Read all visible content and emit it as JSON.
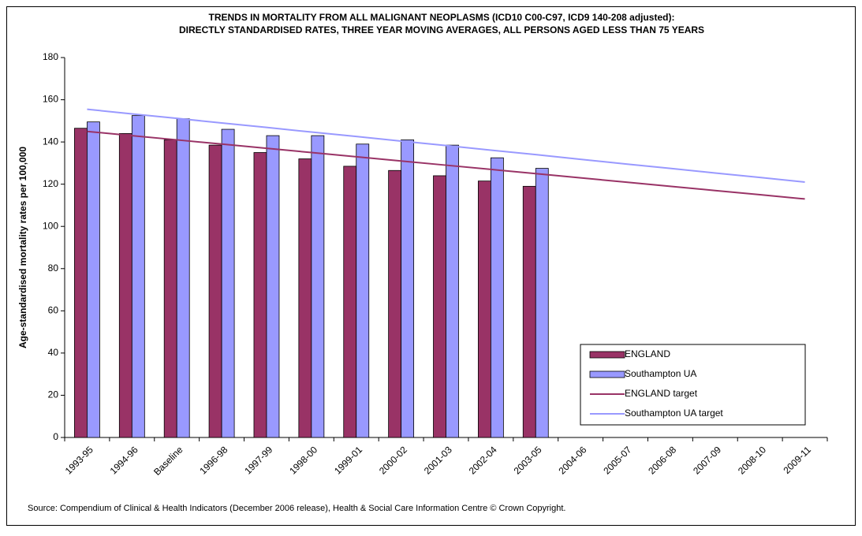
{
  "chart_data": {
    "type": "bar",
    "title": [
      "TRENDS IN MORTALITY FROM ALL MALIGNANT NEOPLASMS (ICD10 C00-C97, ICD9 140-208 adjusted):",
      "DIRECTLY STANDARDISED RATES, THREE YEAR MOVING AVERAGES, ALL PERSONS AGED  LESS THAN 75 YEARS"
    ],
    "y_label": "Age-standardised mortality rates per 100,000",
    "source": "Source: Compendium of Clinical & Health Indicators (December 2006 release), Health & Social Care Information Centre © Crown Copyright.",
    "categories": [
      "1993-95",
      "1994-96",
      "Baseline",
      "1996-98",
      "1997-99",
      "1998-00",
      "1999-01",
      "2000-02",
      "2001-03",
      "2002-04",
      "2003-05",
      "2004-06",
      "2005-07",
      "2006-08",
      "2007-09",
      "2008-10",
      "2009-11"
    ],
    "series": [
      {
        "name": "ENGLAND",
        "type": "bar",
        "color": "#993366",
        "values": [
          146.5,
          144,
          141,
          138.5,
          135,
          132,
          128.5,
          126.5,
          124,
          121.5,
          119,
          null,
          null,
          null,
          null,
          null,
          null
        ]
      },
      {
        "name": "Southampton UA",
        "type": "bar",
        "color": "#9999ff",
        "values": [
          149.5,
          152.5,
          151,
          146,
          143,
          143,
          139,
          141,
          138.5,
          132.5,
          127.5,
          null,
          null,
          null,
          null,
          null,
          null
        ]
      },
      {
        "name": "ENGLAND target",
        "type": "line",
        "color": "#993366",
        "values": [
          145,
          143,
          141,
          139,
          137,
          135,
          133,
          131,
          129,
          127,
          125,
          123,
          121,
          119,
          117,
          115,
          113
        ]
      },
      {
        "name": "Southampton UA target",
        "type": "line",
        "color": "#9999ff",
        "values": [
          155.5,
          153.3,
          151.2,
          149,
          146.9,
          144.7,
          142.6,
          140.4,
          138.3,
          136.1,
          134,
          131.8,
          129.6,
          127.5,
          125.3,
          123.2,
          121
        ]
      }
    ],
    "ylim": [
      0,
      180
    ],
    "yticks": [
      0,
      20,
      40,
      60,
      80,
      100,
      120,
      140,
      160,
      180
    ],
    "legend": "lower right"
  }
}
